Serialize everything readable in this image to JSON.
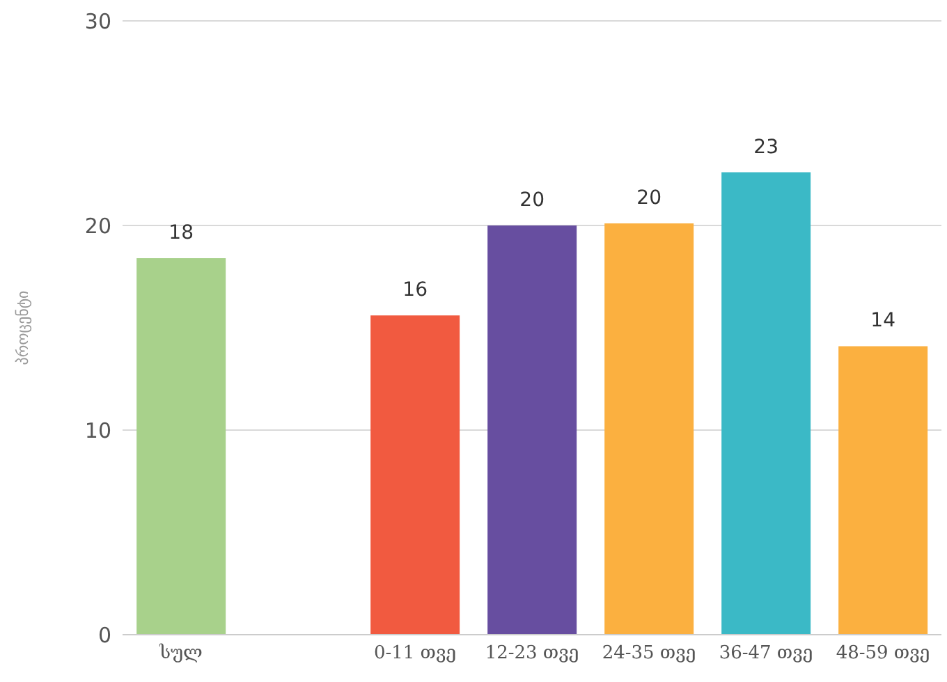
{
  "chart_data": {
    "type": "bar",
    "ylabel": "პროცენტი",
    "categories": [
      "სულ",
      null,
      "0-11 თვე",
      "12-23 თვე",
      "24-35 თვე",
      "36-47 თვე",
      "48-59 თვე"
    ],
    "values": [
      18.4,
      null,
      15.6,
      20.0,
      20.1,
      22.6,
      14.1
    ],
    "colors": [
      "#a8d18b",
      "#ffffff",
      "#f15a40",
      "#674ea0",
      "#fbb040",
      "#3bb9c6",
      "#fbb040"
    ],
    "value_labels": [
      "18",
      null,
      "16",
      "20",
      "20",
      "23",
      "14"
    ],
    "ylim": [
      0,
      30
    ],
    "yticks": [
      0,
      10,
      20,
      30
    ],
    "grid": "y",
    "legend": false
  }
}
